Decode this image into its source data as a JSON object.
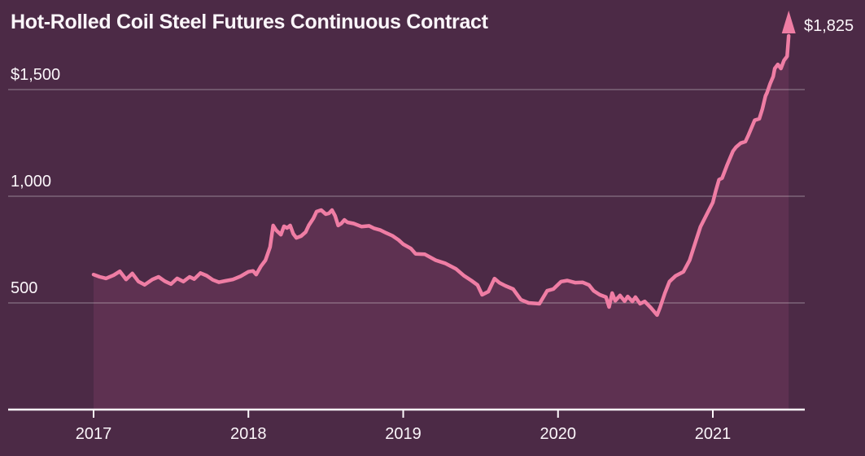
{
  "title": "Hot-Rolled Coil Steel Futures Continuous Contract",
  "annotation": {
    "text": "$1,825",
    "value": 1825,
    "icon": "up-arrow-icon"
  },
  "colors": {
    "background": "#4c2a46",
    "area_fill": "#5e3151",
    "line": "#ef7da4",
    "text": "#fbf6fa",
    "gridline": "rgba(255,255,255,0.28)",
    "axis": "#fdf9fc"
  },
  "chart_data": {
    "type": "area",
    "title": "Hot-Rolled Coil Steel Futures Continuous Contract",
    "xlabel": "",
    "ylabel": "",
    "legend": "none",
    "grid": "horizontal",
    "ylim": [
      0,
      1900
    ],
    "xlim": [
      2016.45,
      2021.6
    ],
    "x_ticks": [
      {
        "label": "2017",
        "year": 2017
      },
      {
        "label": "2018",
        "year": 2018
      },
      {
        "label": "2019",
        "year": 2019
      },
      {
        "label": "2020",
        "year": 2020
      },
      {
        "label": "2021",
        "year": 2021
      }
    ],
    "y_ticks": [
      {
        "label": "$1,500",
        "value": 1500
      },
      {
        "label": "1,000",
        "value": 1000
      },
      {
        "label": "500",
        "value": 500
      }
    ],
    "last_value_label": "$1,825",
    "x": [
      2017.0,
      2017.04,
      2017.08,
      2017.13,
      2017.17,
      2017.21,
      2017.25,
      2017.29,
      2017.33,
      2017.38,
      2017.42,
      2017.46,
      2017.5,
      2017.54,
      2017.58,
      2017.62,
      2017.65,
      2017.69,
      2017.73,
      2017.77,
      2017.81,
      2017.85,
      2017.9,
      2017.95,
      2018.0,
      2018.03,
      2018.05,
      2018.08,
      2018.11,
      2018.14,
      2018.16,
      2018.18,
      2018.21,
      2018.23,
      2018.25,
      2018.27,
      2018.29,
      2018.31,
      2018.34,
      2018.37,
      2018.39,
      2018.42,
      2018.44,
      2018.47,
      2018.5,
      2018.52,
      2018.54,
      2018.56,
      2018.58,
      2018.6,
      2018.62,
      2018.64,
      2018.68,
      2018.73,
      2018.78,
      2018.81,
      2018.85,
      2018.89,
      2018.93,
      2018.97,
      2019.0,
      2019.05,
      2019.08,
      2019.14,
      2019.21,
      2019.27,
      2019.34,
      2019.39,
      2019.44,
      2019.48,
      2019.51,
      2019.55,
      2019.59,
      2019.62,
      2019.66,
      2019.71,
      2019.76,
      2019.81,
      2019.88,
      2019.93,
      2019.97,
      2020.02,
      2020.06,
      2020.11,
      2020.16,
      2020.2,
      2020.23,
      2020.27,
      2020.31,
      2020.33,
      2020.35,
      2020.37,
      2020.4,
      2020.43,
      2020.45,
      2020.48,
      2020.5,
      2020.53,
      2020.56,
      2020.6,
      2020.64,
      2020.66,
      2020.69,
      2020.72,
      2020.76,
      2020.81,
      2020.85,
      2020.89,
      2020.92,
      2020.96,
      2021.0,
      2021.02,
      2021.04,
      2021.06,
      2021.09,
      2021.13,
      2021.15,
      2021.18,
      2021.21,
      2021.23,
      2021.27,
      2021.3,
      2021.32,
      2021.34,
      2021.35,
      2021.37,
      2021.39,
      2021.4,
      2021.42,
      2021.44,
      2021.46,
      2021.48,
      2021.49
    ],
    "values": [
      633,
      622,
      615,
      630,
      648,
      610,
      638,
      600,
      585,
      610,
      622,
      602,
      588,
      615,
      600,
      622,
      612,
      640,
      628,
      608,
      597,
      603,
      610,
      625,
      646,
      650,
      633,
      671,
      700,
      762,
      863,
      840,
      820,
      859,
      851,
      863,
      824,
      805,
      813,
      832,
      863,
      897,
      928,
      935,
      916,
      920,
      935,
      908,
      863,
      872,
      889,
      878,
      872,
      858,
      861,
      850,
      842,
      828,
      815,
      795,
      775,
      755,
      730,
      728,
      700,
      686,
      660,
      629,
      605,
      584,
      538,
      553,
      614,
      595,
      580,
      565,
      515,
      500,
      496,
      557,
      565,
      600,
      605,
      595,
      596,
      584,
      557,
      538,
      527,
      481,
      546,
      510,
      535,
      508,
      530,
      507,
      527,
      496,
      507,
      477,
      443,
      480,
      545,
      600,
      627,
      646,
      700,
      790,
      857,
      914,
      971,
      1028,
      1078,
      1085,
      1142,
      1211,
      1230,
      1249,
      1256,
      1287,
      1356,
      1363,
      1409,
      1470,
      1485,
      1527,
      1561,
      1599,
      1618,
      1599,
      1637,
      1656,
      1825
    ]
  }
}
